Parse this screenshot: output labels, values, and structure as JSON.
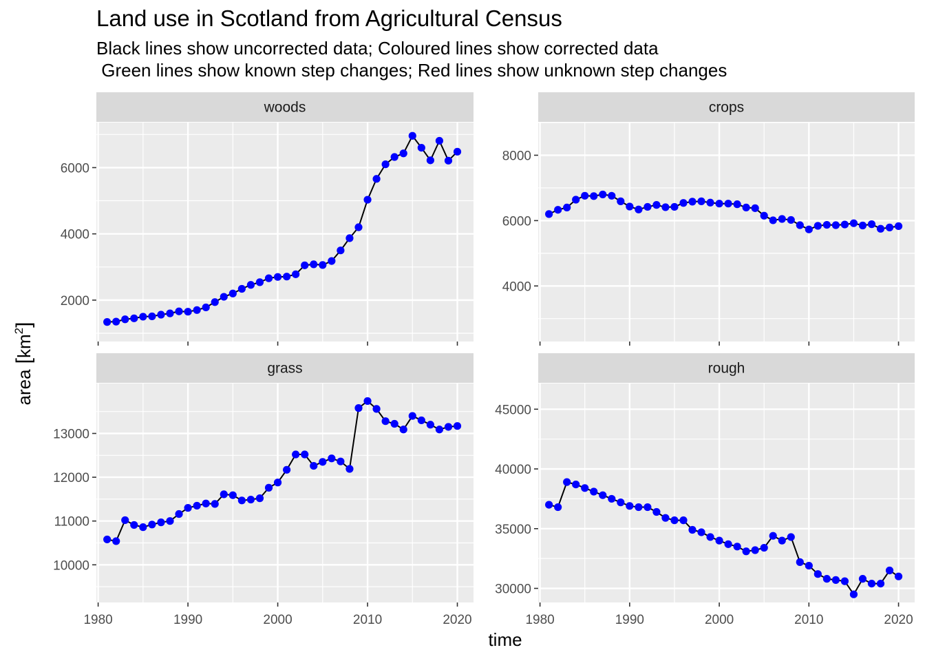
{
  "title": "Land use in Scotland from Agricultural Census",
  "subtitle_line1": "Black lines show uncorrected data; Coloured lines show corrected data",
  "subtitle_line2": " Green lines show known step changes; Red lines show unknown step changes",
  "xlabel": "time",
  "ylabel_main": "area",
  "ylabel_unit": "km",
  "ylabel_sup": "2",
  "colors": {
    "panel_bg": "#EBEBEB",
    "strip_bg": "#D9D9D9",
    "grid": "#FFFFFF",
    "line": "#000000",
    "point": "#0000FF"
  },
  "chart_data": [
    {
      "type": "line",
      "panel": "woods",
      "x": [
        1981,
        1982,
        1983,
        1984,
        1985,
        1986,
        1987,
        1988,
        1989,
        1990,
        1991,
        1992,
        1993,
        1994,
        1995,
        1996,
        1997,
        1998,
        1999,
        2000,
        2001,
        2002,
        2003,
        2004,
        2005,
        2006,
        2007,
        2008,
        2009,
        2010,
        2011,
        2012,
        2013,
        2014,
        2015,
        2016,
        2017,
        2018,
        2019,
        2020
      ],
      "y": [
        1340,
        1350,
        1420,
        1450,
        1500,
        1510,
        1560,
        1600,
        1660,
        1650,
        1700,
        1780,
        1940,
        2100,
        2200,
        2340,
        2460,
        2540,
        2660,
        2700,
        2710,
        2780,
        3050,
        3080,
        3060,
        3180,
        3500,
        3870,
        4200,
        5030,
        5660,
        6100,
        6320,
        6430,
        6960,
        6600,
        6220,
        6810,
        6210,
        6480
      ],
      "xlim": [
        1979.8,
        2021.8
      ],
      "ylim": [
        750,
        7360
      ],
      "xticks": [
        1980,
        1990,
        2000,
        2010,
        2020
      ],
      "yticks": [
        2000,
        4000,
        6000
      ],
      "xtick_labels": [
        "1980",
        "1990",
        "2000",
        "2010",
        "2020"
      ],
      "ytick_labels": [
        "2000",
        "4000",
        "6000"
      ]
    },
    {
      "type": "line",
      "panel": "crops",
      "x": [
        1981,
        1982,
        1983,
        1984,
        1985,
        1986,
        1987,
        1988,
        1989,
        1990,
        1991,
        1992,
        1993,
        1994,
        1995,
        1996,
        1997,
        1998,
        1999,
        2000,
        2001,
        2002,
        2003,
        2004,
        2005,
        2006,
        2007,
        2008,
        2009,
        2010,
        2011,
        2012,
        2013,
        2014,
        2015,
        2016,
        2017,
        2018,
        2019,
        2020
      ],
      "y": [
        6200,
        6330,
        6400,
        6640,
        6760,
        6750,
        6800,
        6760,
        6590,
        6430,
        6340,
        6420,
        6480,
        6410,
        6420,
        6540,
        6580,
        6590,
        6550,
        6520,
        6520,
        6500,
        6400,
        6380,
        6150,
        6010,
        6050,
        6020,
        5860,
        5730,
        5840,
        5870,
        5860,
        5880,
        5920,
        5850,
        5890,
        5750,
        5790,
        5830
      ],
      "xlim": [
        1979.8,
        2021.8
      ],
      "ylim": [
        2300,
        9000
      ],
      "xticks": [
        1980,
        1990,
        2000,
        2010,
        2020
      ],
      "yticks": [
        4000,
        6000,
        8000
      ],
      "xtick_labels": [
        "1980",
        "1990",
        "2000",
        "2010",
        "2020"
      ],
      "ytick_labels": [
        "4000",
        "6000",
        "8000"
      ]
    },
    {
      "type": "line",
      "panel": "grass",
      "x": [
        1981,
        1982,
        1983,
        1984,
        1985,
        1986,
        1987,
        1988,
        1989,
        1990,
        1991,
        1992,
        1993,
        1994,
        1995,
        1996,
        1997,
        1998,
        1999,
        2000,
        2001,
        2002,
        2003,
        2004,
        2005,
        2006,
        2007,
        2008,
        2009,
        2010,
        2011,
        2012,
        2013,
        2014,
        2015,
        2016,
        2017,
        2018,
        2019,
        2020
      ],
      "y": [
        10580,
        10540,
        11020,
        10910,
        10860,
        10920,
        10970,
        11000,
        11160,
        11300,
        11350,
        11400,
        11390,
        11610,
        11590,
        11470,
        11490,
        11520,
        11760,
        11880,
        12170,
        12520,
        12520,
        12260,
        12350,
        12430,
        12360,
        12190,
        13580,
        13740,
        13560,
        13280,
        13220,
        13090,
        13400,
        13300,
        13200,
        13090,
        13150,
        13170
      ],
      "xlim": [
        1979.8,
        2021.8
      ],
      "ylim": [
        9140,
        14140
      ],
      "xticks": [
        1980,
        1990,
        2000,
        2010,
        2020
      ],
      "yticks": [
        10000,
        11000,
        12000,
        13000
      ],
      "xtick_labels": [
        "1980",
        "1990",
        "2000",
        "2010",
        "2020"
      ],
      "ytick_labels": [
        "10000",
        "11000",
        "12000",
        "13000"
      ]
    },
    {
      "type": "line",
      "panel": "rough",
      "x": [
        1981,
        1982,
        1983,
        1984,
        1985,
        1986,
        1987,
        1988,
        1989,
        1990,
        1991,
        1992,
        1993,
        1994,
        1995,
        1996,
        1997,
        1998,
        1999,
        2000,
        2001,
        2002,
        2003,
        2004,
        2005,
        2006,
        2007,
        2008,
        2009,
        2010,
        2011,
        2012,
        2013,
        2014,
        2015,
        2016,
        2017,
        2018,
        2019,
        2020
      ],
      "y": [
        37000,
        36800,
        38900,
        38700,
        38400,
        38100,
        37800,
        37500,
        37200,
        36900,
        36800,
        36800,
        36400,
        35900,
        35700,
        35700,
        34900,
        34700,
        34300,
        34000,
        33700,
        33500,
        33100,
        33200,
        33400,
        34400,
        34000,
        34300,
        32200,
        31900,
        31200,
        30800,
        30700,
        30600,
        29500,
        30800,
        30400,
        30400,
        31500,
        31000
      ],
      "xlim": [
        1979.8,
        2021.8
      ],
      "ylim": [
        28820,
        47150
      ],
      "xticks": [
        1980,
        1990,
        2000,
        2010,
        2020
      ],
      "yticks": [
        30000,
        35000,
        40000,
        45000
      ],
      "xtick_labels": [
        "1980",
        "1990",
        "2000",
        "2010",
        "2020"
      ],
      "ytick_labels": [
        "30000",
        "35000",
        "40000",
        "45000"
      ]
    }
  ]
}
